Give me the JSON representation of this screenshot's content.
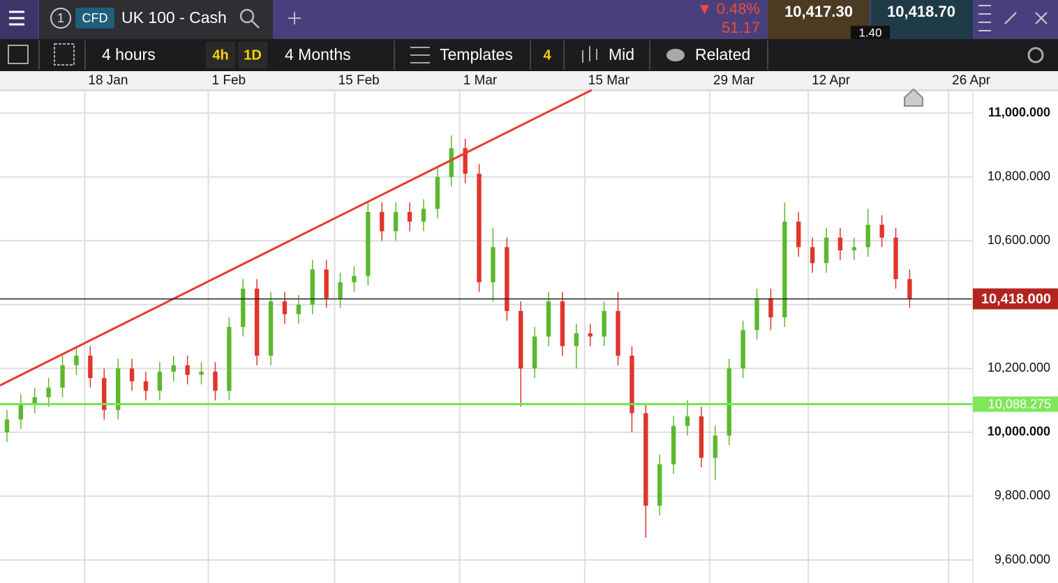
{
  "header": {
    "badge_number": "1",
    "instrument_type": "CFD",
    "instrument": "UK 100 - Cash",
    "change_pct": "▼ 0.48%",
    "change_pts": "51.17",
    "sell": "10,417.30",
    "buy": "10,418.70",
    "spread": "1.40"
  },
  "toolbar": {
    "interval": "4 hours",
    "quick_1": "4h",
    "quick_2": "1D",
    "range": "4 Months",
    "templates": "Templates",
    "templates_count": "4",
    "price_type": "Mid",
    "related": "Related"
  },
  "chart_data": {
    "type": "candlestick",
    "open": [
      10000,
      10040,
      10090,
      10110,
      10140,
      10210,
      10240,
      10170,
      10070,
      10200,
      10160,
      10130,
      10190,
      10210,
      10180,
      10190,
      10130,
      10330,
      10450,
      10240,
      10410,
      10370,
      10400,
      10510,
      10420,
      10470,
      10490,
      10690,
      10630,
      10690,
      10660,
      10700,
      10800,
      10890,
      10810,
      10470,
      10580,
      10380,
      10200,
      10300,
      10410,
      10270,
      10310,
      10300,
      10380,
      10240,
      10060,
      9770,
      9900,
      10020,
      10050,
      9920,
      9990,
      10200,
      10320,
      10420,
      10360,
      10660,
      10580,
      10530,
      10610,
      10570,
      10580,
      10650,
      10610,
      10480
    ],
    "high": [
      10070,
      10120,
      10140,
      10170,
      10240,
      10270,
      10270,
      10200,
      10230,
      10230,
      10190,
      10220,
      10240,
      10240,
      10220,
      10220,
      10360,
      10480,
      10480,
      10440,
      10440,
      10430,
      10540,
      10540,
      10500,
      10520,
      10720,
      10720,
      10720,
      10720,
      10730,
      10830,
      10930,
      10920,
      10840,
      10640,
      10610,
      10410,
      10330,
      10440,
      10440,
      10340,
      10340,
      10410,
      10440,
      10270,
      10090,
      9930,
      10050,
      10100,
      10080,
      10020,
      10230,
      10350,
      10450,
      10450,
      10720,
      10690,
      10610,
      10640,
      10640,
      10610,
      10700,
      10680,
      10640,
      10510
    ],
    "low": [
      9970,
      10010,
      10060,
      10080,
      10110,
      10180,
      10140,
      10040,
      10040,
      10130,
      10100,
      10100,
      10160,
      10150,
      10150,
      10100,
      10100,
      10300,
      10210,
      10210,
      10340,
      10340,
      10370,
      10390,
      10390,
      10440,
      10460,
      10600,
      10600,
      10630,
      10630,
      10670,
      10770,
      10780,
      10440,
      10410,
      10350,
      10080,
      10170,
      10270,
      10240,
      10200,
      10270,
      10270,
      10210,
      10000,
      9670,
      9740,
      9870,
      9990,
      9890,
      9850,
      9960,
      10170,
      10290,
      10320,
      10330,
      10550,
      10500,
      10500,
      10540,
      10540,
      10550,
      10580,
      10450,
      10390
    ],
    "close": [
      10040,
      10090,
      10110,
      10140,
      10210,
      10240,
      10170,
      10070,
      10200,
      10160,
      10130,
      10190,
      10210,
      10180,
      10190,
      10130,
      10330,
      10450,
      10240,
      10410,
      10370,
      10400,
      10510,
      10420,
      10470,
      10490,
      10690,
      10630,
      10690,
      10660,
      10700,
      10800,
      10890,
      10810,
      10470,
      10580,
      10380,
      10200,
      10300,
      10410,
      10270,
      10310,
      10300,
      10380,
      10240,
      10060,
      9770,
      9900,
      10020,
      10050,
      9920,
      9990,
      10200,
      10320,
      10420,
      10360,
      10660,
      10580,
      10530,
      10610,
      10570,
      10580,
      10650,
      10610,
      10480,
      10418
    ],
    "up_color": "#5cb82e",
    "down_color": "#e0352b",
    "xlim": [
      0,
      70
    ],
    "xticks": [
      {
        "value": 6.1,
        "label": "18 Jan"
      },
      {
        "value": 15,
        "label": "1 Feb"
      },
      {
        "value": 24.1,
        "label": "15 Feb"
      },
      {
        "value": 33.1,
        "label": "1 Mar"
      },
      {
        "value": 42.1,
        "label": "15 Mar"
      },
      {
        "value": 51.1,
        "label": "29 Mar"
      },
      {
        "value": 58.2,
        "label": "12 Apr"
      },
      {
        "value": 68.3,
        "label": "26 Apr"
      }
    ],
    "ylim": [
      9528,
      11068
    ],
    "yticks": [
      {
        "value": 9600,
        "label": "9,600.000"
      },
      {
        "value": 9800,
        "label": "9,800.000"
      },
      {
        "value": 10000,
        "label": "10,000.000"
      },
      {
        "value": 10200,
        "label": "10,200.000"
      },
      {
        "value": 10400,
        "label": "10,400.000"
      },
      {
        "value": 10600,
        "label": "10,600.000"
      },
      {
        "value": 10800,
        "label": "10,800.000"
      },
      {
        "value": 11000,
        "label": "11,000.000"
      }
    ],
    "bold_ticks": [
      10000,
      11000
    ],
    "grid": true,
    "hlines": [
      {
        "value": 10418,
        "label": "10,418.000",
        "color": "#222222",
        "tag_color": "#b3241f"
      },
      {
        "value": 10088.275,
        "label": "10,088.275",
        "color": "#6fe94a",
        "tag_color": "#7fe85a"
      }
    ],
    "trendlines": [
      {
        "x": [
          0,
          42.6
        ],
        "y": [
          10147,
          11072
        ],
        "color": "#e8392c"
      }
    ]
  }
}
